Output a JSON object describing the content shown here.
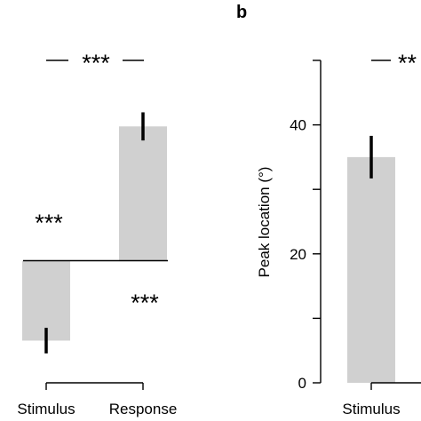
{
  "panel_label_b": "b",
  "chart_data": [
    {
      "type": "bar",
      "panel": "",
      "categories": [
        "Stimulus",
        "Response"
      ],
      "values": [
        -12.5,
        21
      ],
      "errors": [
        2,
        2.2
      ],
      "zero_line": true,
      "ylabel": "",
      "bar_color": "#d0d0d0",
      "annotations": {
        "top_bracket": "***",
        "above_zero_left": "***",
        "below_zero_right": "***"
      }
    },
    {
      "type": "bar",
      "panel": "b",
      "categories": [
        "Stimulus"
      ],
      "values": [
        35
      ],
      "errors": [
        3.3
      ],
      "ylabel": "Peak location (°)",
      "ylim": [
        0,
        50
      ],
      "yticks": [
        0,
        20,
        40
      ],
      "bar_color": "#d0d0d0",
      "annotations": {
        "top_bracket": "**"
      }
    }
  ]
}
